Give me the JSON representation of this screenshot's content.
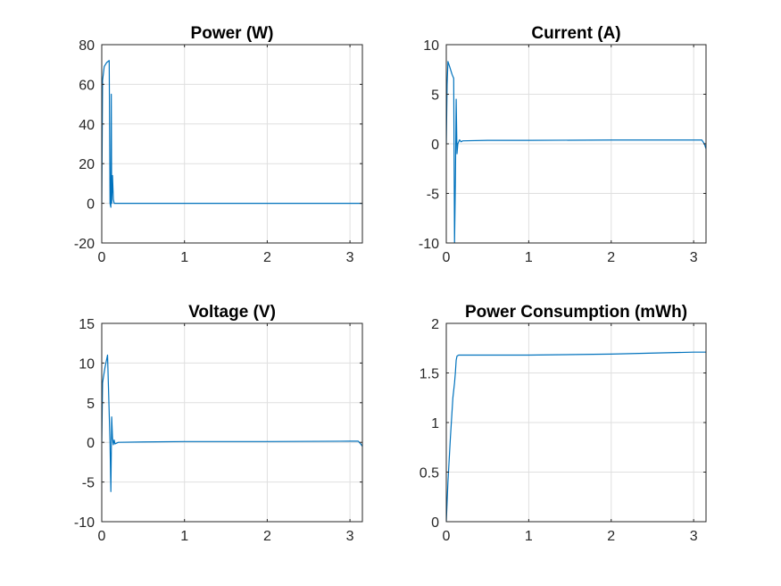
{
  "chart_data": [
    {
      "type": "line",
      "title": "Power (W)",
      "xlabel": "",
      "ylabel": "",
      "xlim": [
        0,
        3.15
      ],
      "ylim": [
        -20,
        80
      ],
      "xticks": [
        0,
        1,
        2,
        3
      ],
      "yticks": [
        -20,
        0,
        20,
        40,
        60,
        80
      ],
      "grid": true,
      "series": [
        {
          "color": "#0072BD",
          "x": [
            0,
            0.01,
            0.03,
            0.06,
            0.09,
            0.1,
            0.11,
            0.115,
            0.12,
            0.13,
            0.14,
            0.15,
            0.18,
            0.3,
            1.0,
            2.0,
            3.0,
            3.15
          ],
          "y": [
            0,
            62,
            69,
            71,
            72,
            0,
            -2,
            55,
            0,
            14,
            2,
            0,
            0,
            0,
            0,
            0,
            0,
            0
          ]
        }
      ]
    },
    {
      "type": "line",
      "title": "Current (A)",
      "xlabel": "",
      "ylabel": "",
      "xlim": [
        0,
        3.15
      ],
      "ylim": [
        -10,
        10
      ],
      "xticks": [
        0,
        1,
        2,
        3
      ],
      "yticks": [
        -10,
        -5,
        0,
        5,
        10
      ],
      "grid": true,
      "series": [
        {
          "color": "#0072BD",
          "x": [
            0,
            0.01,
            0.02,
            0.04,
            0.07,
            0.09,
            0.1,
            0.11,
            0.12,
            0.13,
            0.14,
            0.16,
            0.18,
            0.2,
            0.5,
            1.0,
            2.0,
            3.0,
            3.1,
            3.13,
            3.15
          ],
          "y": [
            0,
            6,
            8.3,
            7.8,
            7.0,
            6.6,
            -10,
            -4.0,
            4.5,
            -1.0,
            0.0,
            0.4,
            0.2,
            0.3,
            0.35,
            0.35,
            0.38,
            0.38,
            0.38,
            0.0,
            -0.5
          ]
        }
      ]
    },
    {
      "type": "line",
      "title": "Voltage (V)",
      "xlabel": "",
      "ylabel": "",
      "xlim": [
        0,
        3.15
      ],
      "ylim": [
        -10,
        15
      ],
      "xticks": [
        0,
        1,
        2,
        3
      ],
      "yticks": [
        -10,
        -5,
        0,
        5,
        10,
        15
      ],
      "grid": true,
      "series": [
        {
          "color": "#0072BD",
          "x": [
            0,
            0.01,
            0.02,
            0.04,
            0.07,
            0.1,
            0.11,
            0.12,
            0.13,
            0.14,
            0.15,
            0.16,
            0.18,
            0.2,
            0.5,
            1.0,
            2.0,
            3.0,
            3.1,
            3.13,
            3.15
          ],
          "y": [
            0,
            7.5,
            8.2,
            9.5,
            11.0,
            0,
            -6.2,
            3.2,
            0.5,
            -0.3,
            0.3,
            -0.2,
            -0.1,
            0.0,
            0.05,
            0.1,
            0.1,
            0.15,
            0.15,
            -0.2,
            -0.5
          ]
        }
      ]
    },
    {
      "type": "line",
      "title": "Power Consumption (mWh)",
      "xlabel": "",
      "ylabel": "",
      "xlim": [
        0,
        3.15
      ],
      "ylim": [
        0,
        2
      ],
      "xticks": [
        0,
        1,
        2,
        3
      ],
      "yticks": [
        0,
        0.5,
        1,
        1.5,
        2
      ],
      "grid": true,
      "series": [
        {
          "color": "#0072BD",
          "x": [
            0,
            0.02,
            0.05,
            0.08,
            0.1,
            0.11,
            0.12,
            0.13,
            0.15,
            0.2,
            0.5,
            1.0,
            2.0,
            3.0,
            3.15
          ],
          "y": [
            0,
            0.4,
            0.85,
            1.25,
            1.4,
            1.5,
            1.63,
            1.67,
            1.68,
            1.68,
            1.68,
            1.68,
            1.69,
            1.71,
            1.71
          ]
        }
      ]
    }
  ]
}
